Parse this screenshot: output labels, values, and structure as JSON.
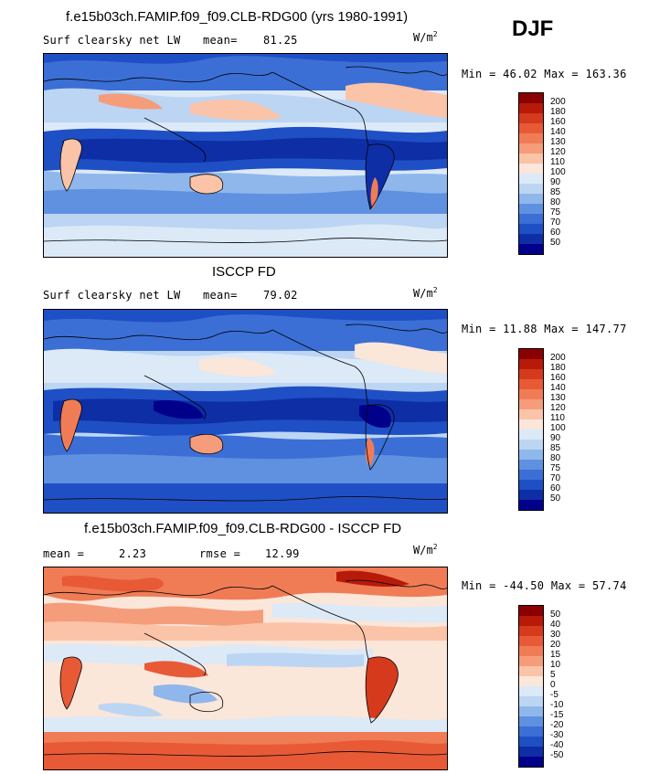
{
  "season": "DJF",
  "panels": [
    {
      "title": "f.e15b03ch.FAMIP.f09_f09.CLB-RDG00 (yrs 1980-1991)",
      "left_label": "Surf clearsky net LW",
      "stat_label": "mean=",
      "stat_value": "81.25",
      "unit": "W/m",
      "unit_exp": "2",
      "minmax": "Min =  46.02 Max = 163.36"
    },
    {
      "title": "ISCCP FD",
      "left_label": "Surf clearsky net LW",
      "stat_label": "mean=",
      "stat_value": "79.02",
      "unit": "W/m",
      "unit_exp": "2",
      "minmax": "Min =  11.88 Max = 147.77"
    },
    {
      "title": "f.e15b03ch.FAMIP.f09_f09.CLB-RDG00 - ISCCP FD",
      "left_label": "mean =",
      "left_value": "2.23",
      "stat_label": "rmse =",
      "stat_value": "12.99",
      "unit": "W/m",
      "unit_exp": "2",
      "minmax": "Min = -44.50 Max =  57.74"
    }
  ],
  "chart_data": [
    {
      "type": "heatmap",
      "title": "f.e15b03ch.FAMIP.f09_f09.CLB-RDG00 (yrs 1980-1991)",
      "variable": "Surf clearsky net LW",
      "mean": 81.25,
      "min": 46.02,
      "max": 163.36,
      "colorbar_levels": [
        "200",
        "180",
        "160",
        "140",
        "130",
        "120",
        "110",
        "100",
        "90",
        "85",
        "80",
        "75",
        "70",
        "60",
        "50"
      ],
      "colorbar_colors": [
        "#8b0000",
        "#b81a0a",
        "#d53a1c",
        "#e85a36",
        "#f07c55",
        "#f59c7a",
        "#fbc3a8",
        "#fbe6da",
        "#dce9f7",
        "#bcd5f3",
        "#8fb7ec",
        "#5f91e0",
        "#3b6fd6",
        "#1f4fc4",
        "#0e2ea6",
        "#00008b"
      ]
    },
    {
      "type": "heatmap",
      "title": "ISCCP FD",
      "variable": "Surf clearsky net LW",
      "mean": 79.02,
      "min": 11.88,
      "max": 147.77,
      "colorbar_levels": [
        "200",
        "180",
        "160",
        "140",
        "130",
        "120",
        "110",
        "100",
        "90",
        "85",
        "80",
        "75",
        "70",
        "60",
        "50"
      ],
      "colorbar_colors": [
        "#8b0000",
        "#b81a0a",
        "#d53a1c",
        "#e85a36",
        "#f07c55",
        "#f59c7a",
        "#fbc3a8",
        "#fbe6da",
        "#dce9f7",
        "#bcd5f3",
        "#8fb7ec",
        "#5f91e0",
        "#3b6fd6",
        "#1f4fc4",
        "#0e2ea6",
        "#00008b"
      ]
    },
    {
      "type": "heatmap",
      "title": "f.e15b03ch.FAMIP.f09_f09.CLB-RDG00 - ISCCP FD",
      "mean": 2.23,
      "rmse": 12.99,
      "min": -44.5,
      "max": 57.74,
      "colorbar_levels": [
        "50",
        "40",
        "30",
        "20",
        "15",
        "10",
        "5",
        "0",
        "-5",
        "-10",
        "-15",
        "-20",
        "-30",
        "-40",
        "-50"
      ],
      "colorbar_colors": [
        "#8b0000",
        "#b81a0a",
        "#d53a1c",
        "#e85a36",
        "#f07c55",
        "#f59c7a",
        "#fbc3a8",
        "#fbe6da",
        "#dce9f7",
        "#bcd5f3",
        "#8fb7ec",
        "#5f91e0",
        "#3b6fd6",
        "#1f4fc4",
        "#0e2ea6",
        "#00008b"
      ]
    }
  ]
}
